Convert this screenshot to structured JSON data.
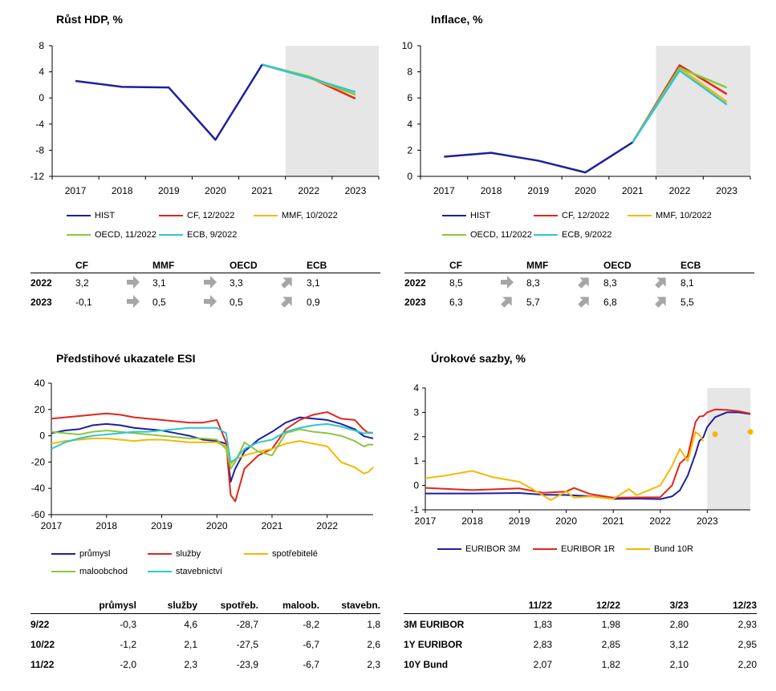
{
  "colors": {
    "hist": "#1f1f9e",
    "cf": "#e0261b",
    "mmf": "#f5b800",
    "oecd": "#8cc63f",
    "ecb": "#2ec7cf",
    "prumysl": "#1f1f9e",
    "sluzby": "#e0261b",
    "spotrebitele": "#f5b800",
    "maloobchod": "#8cc63f",
    "stavebnictvi": "#2ec7cf",
    "euribor3m": "#1f1f9e",
    "euribor1r": "#e0261b",
    "bund10r": "#f5b800",
    "shade": "#e6e6e6",
    "arrow": "#a6a6a6"
  },
  "gdp": {
    "title": "Růst HDP, %",
    "legend": [
      "HIST",
      "CF, 12/2022",
      "MMF, 10/2022",
      "OECD, 11/2022",
      "ECB, 9/2022"
    ],
    "table": {
      "headers": [
        "CF",
        "MMF",
        "OECD",
        "ECB"
      ],
      "rows": [
        {
          "label": "2022",
          "cf": "3,2",
          "mmf": "3,1",
          "oecd": "3,3",
          "ecb": "3,1",
          "arrows": [
            "right",
            "right",
            "up-right"
          ]
        },
        {
          "label": "2023",
          "cf": "-0,1",
          "mmf": "0,5",
          "oecd": "0,5",
          "ecb": "0,9",
          "arrows": [
            "right",
            "right",
            "up-right"
          ]
        }
      ]
    }
  },
  "inflation": {
    "title": "Inflace, %",
    "legend": [
      "HIST",
      "CF, 12/2022",
      "MMF, 10/2022",
      "OECD, 11/2022",
      "ECB, 9/2022"
    ],
    "table": {
      "headers": [
        "CF",
        "MMF",
        "OECD",
        "ECB"
      ],
      "rows": [
        {
          "label": "2022",
          "cf": "8,5",
          "mmf": "8,3",
          "oecd": "8,3",
          "ecb": "8,1",
          "arrows": [
            "right",
            "up-right",
            "up-right"
          ]
        },
        {
          "label": "2023",
          "cf": "6,3",
          "mmf": "5,7",
          "oecd": "6,8",
          "ecb": "5,5",
          "arrows": [
            "up-right",
            "up-right",
            "up-right"
          ]
        }
      ]
    }
  },
  "esi": {
    "title": "Předstihové ukazatele ESI",
    "legend": [
      "průmysl",
      "služby",
      "spotřebitelé",
      "maloobchod",
      "stavebnictví"
    ],
    "table": {
      "headers": [
        "průmysl",
        "služby",
        "spotřeb.",
        "maloob.",
        "stavebn."
      ],
      "rows": [
        {
          "label": "9/22",
          "values": [
            "-0,3",
            "4,6",
            "-28,7",
            "-8,2",
            "1,8"
          ]
        },
        {
          "label": "10/22",
          "values": [
            "-1,2",
            "2,1",
            "-27,5",
            "-6,7",
            "2,6"
          ]
        },
        {
          "label": "11/22",
          "values": [
            "-2,0",
            "2,3",
            "-23,9",
            "-6,7",
            "2,3"
          ]
        }
      ]
    }
  },
  "rates": {
    "title": "Úrokové sazby, %",
    "legend": [
      "EURIBOR 3M",
      "EURIBOR 1R",
      "Bund 10R"
    ],
    "table": {
      "headers": [
        "11/22",
        "12/22",
        "3/23",
        "12/23"
      ],
      "rows": [
        {
          "label": "3M EURIBOR",
          "values": [
            "1,83",
            "1,98",
            "2,80",
            "2,93"
          ]
        },
        {
          "label": "1Y EURIBOR",
          "values": [
            "2,83",
            "2,85",
            "3,12",
            "2,95"
          ]
        },
        {
          "label": "10Y Bund",
          "values": [
            "2,07",
            "1,82",
            "2,10",
            "2,20"
          ]
        }
      ]
    }
  },
  "chart_data": [
    {
      "type": "line",
      "title": "Růst HDP, %",
      "x": [
        "2017",
        "2018",
        "2019",
        "2020",
        "2021",
        "2022",
        "2023"
      ],
      "ylim": [
        -12,
        8
      ],
      "yticks": [
        "8",
        "4",
        "0",
        "-4",
        "-8",
        "-12"
      ],
      "forecast_shade_from": "2022",
      "series": [
        {
          "name": "HIST",
          "x": [
            "2017",
            "2018",
            "2019",
            "2020",
            "2021"
          ],
          "values": [
            2.6,
            1.7,
            1.6,
            -6.4,
            5.1
          ]
        },
        {
          "name": "CF, 12/2022",
          "x": [
            "2021",
            "2022",
            "2023"
          ],
          "values": [
            5.1,
            3.2,
            -0.1
          ]
        },
        {
          "name": "MMF, 10/2022",
          "x": [
            "2021",
            "2022",
            "2023"
          ],
          "values": [
            5.1,
            3.1,
            0.5
          ]
        },
        {
          "name": "OECD, 11/2022",
          "x": [
            "2021",
            "2022",
            "2023"
          ],
          "values": [
            5.1,
            3.3,
            0.5
          ]
        },
        {
          "name": "ECB, 9/2022",
          "x": [
            "2021",
            "2022",
            "2023"
          ],
          "values": [
            5.1,
            3.1,
            0.9
          ]
        }
      ]
    },
    {
      "type": "line",
      "title": "Inflace, %",
      "x": [
        "2017",
        "2018",
        "2019",
        "2020",
        "2021",
        "2022",
        "2023"
      ],
      "ylim": [
        0,
        10
      ],
      "yticks": [
        "10",
        "8",
        "6",
        "4",
        "2",
        "0"
      ],
      "forecast_shade_from": "2022",
      "series": [
        {
          "name": "HIST",
          "x": [
            "2017",
            "2018",
            "2019",
            "2020",
            "2021"
          ],
          "values": [
            1.5,
            1.8,
            1.2,
            0.3,
            2.6
          ]
        },
        {
          "name": "CF, 12/2022",
          "x": [
            "2021",
            "2022",
            "2023"
          ],
          "values": [
            2.6,
            8.5,
            6.3
          ]
        },
        {
          "name": "MMF, 10/2022",
          "x": [
            "2021",
            "2022",
            "2023"
          ],
          "values": [
            2.6,
            8.3,
            5.7
          ]
        },
        {
          "name": "OECD, 11/2022",
          "x": [
            "2021",
            "2022",
            "2023"
          ],
          "values": [
            2.6,
            8.3,
            6.8
          ]
        },
        {
          "name": "ECB, 9/2022",
          "x": [
            "2021",
            "2022",
            "2023"
          ],
          "values": [
            2.6,
            8.1,
            5.5
          ]
        }
      ]
    },
    {
      "type": "line",
      "title": "Předstihové ukazatele ESI",
      "x_start": "2017-01",
      "x_end": "2022-11",
      "xticks": [
        "2017",
        "2018",
        "2019",
        "2020",
        "2021",
        "2022"
      ],
      "ylim": [
        -60,
        40
      ],
      "yticks": [
        "40",
        "20",
        "0",
        "-20",
        "-40",
        "-60"
      ],
      "x": [
        "2017-01",
        "2017-04",
        "2017-07",
        "2017-10",
        "2018-01",
        "2018-04",
        "2018-07",
        "2018-10",
        "2019-01",
        "2019-04",
        "2019-07",
        "2019-10",
        "2020-01",
        "2020-03",
        "2020-04",
        "2020-05",
        "2020-07",
        "2020-10",
        "2021-01",
        "2021-04",
        "2021-07",
        "2021-10",
        "2022-01",
        "2022-04",
        "2022-07",
        "2022-09",
        "2022-10",
        "2022-11"
      ],
      "series": [
        {
          "name": "průmysl",
          "values": [
            2,
            4,
            5,
            8,
            9,
            8,
            6,
            5,
            4,
            2,
            0,
            -3,
            -4,
            -6,
            -35,
            -25,
            -12,
            -3,
            3,
            10,
            14,
            13,
            12,
            9,
            5,
            -0.3,
            -1.2,
            -2.0
          ]
        },
        {
          "name": "služby",
          "values": [
            13,
            14,
            15,
            16,
            17,
            16,
            14,
            13,
            12,
            11,
            10,
            10,
            12,
            -5,
            -45,
            -50,
            -25,
            -15,
            -10,
            5,
            12,
            16,
            18,
            13,
            12,
            4.6,
            2.1,
            2.3
          ]
        },
        {
          "name": "spotřebitelé",
          "values": [
            -6,
            -4,
            -3,
            -2,
            -2,
            -3,
            -4,
            -3,
            -3,
            -4,
            -5,
            -5,
            -5,
            -8,
            -22,
            -18,
            -15,
            -12,
            -10,
            -6,
            -4,
            -6,
            -8,
            -20,
            -24,
            -28.7,
            -27.5,
            -23.9
          ]
        },
        {
          "name": "maloobchod",
          "values": [
            3,
            2,
            1,
            3,
            4,
            3,
            2,
            1,
            0,
            -1,
            -2,
            -2,
            -3,
            -10,
            -25,
            -20,
            -5,
            -12,
            -15,
            2,
            5,
            3,
            2,
            0,
            -4,
            -8.2,
            -6.7,
            -6.7
          ]
        },
        {
          "name": "stavebnictví",
          "values": [
            -10,
            -5,
            -2,
            0,
            1,
            2,
            3,
            3,
            4,
            5,
            6,
            6,
            6,
            2,
            -20,
            -18,
            -10,
            -5,
            -3,
            3,
            6,
            8,
            9,
            7,
            4,
            1.8,
            2.6,
            2.3
          ]
        }
      ]
    },
    {
      "type": "line",
      "title": "Úrokové sazby, %",
      "x_start": "2017-01",
      "x_end": "2023-12",
      "xticks": [
        "2017",
        "2018",
        "2019",
        "2020",
        "2021",
        "2022",
        "2023"
      ],
      "ylim": [
        -1,
        4
      ],
      "yticks": [
        "4",
        "3",
        "2",
        "1",
        "0",
        "-1"
      ],
      "forecast_shade_from": "2023-01",
      "series": [
        {
          "name": "EURIBOR 3M",
          "x": [
            "2017-01",
            "2018-01",
            "2019-01",
            "2019-07",
            "2020-01",
            "2020-07",
            "2021-01",
            "2021-07",
            "2022-01",
            "2022-04",
            "2022-06",
            "2022-08",
            "2022-10",
            "2022-11",
            "2022-12",
            "2023-01",
            "2023-03",
            "2023-06",
            "2023-09",
            "2023-12"
          ],
          "values": [
            -0.33,
            -0.33,
            -0.31,
            -0.38,
            -0.39,
            -0.44,
            -0.55,
            -0.54,
            -0.56,
            -0.45,
            -0.2,
            0.4,
            1.3,
            1.83,
            1.98,
            2.4,
            2.8,
            3.0,
            3.0,
            2.93
          ]
        },
        {
          "name": "EURIBOR 1R",
          "x": [
            "2017-01",
            "2018-01",
            "2019-01",
            "2019-07",
            "2020-01",
            "2020-03",
            "2020-07",
            "2021-01",
            "2021-07",
            "2022-01",
            "2022-04",
            "2022-06",
            "2022-08",
            "2022-10",
            "2022-11",
            "2022-12",
            "2023-01",
            "2023-03",
            "2023-06",
            "2023-09",
            "2023-12"
          ],
          "values": [
            -0.1,
            -0.19,
            -0.12,
            -0.3,
            -0.25,
            -0.1,
            -0.35,
            -0.5,
            -0.49,
            -0.48,
            0.0,
            0.9,
            1.2,
            2.6,
            2.83,
            2.85,
            3.0,
            3.12,
            3.1,
            3.05,
            2.95
          ]
        },
        {
          "name": "Bund 10R",
          "x": [
            "2017-01",
            "2017-06",
            "2018-01",
            "2018-06",
            "2019-01",
            "2019-06",
            "2019-09",
            "2020-01",
            "2020-03",
            "2020-07",
            "2021-01",
            "2021-05",
            "2021-07",
            "2022-01",
            "2022-04",
            "2022-06",
            "2022-08",
            "2022-10",
            "2022-11",
            "2022-12"
          ],
          "values": [
            0.3,
            0.4,
            0.6,
            0.35,
            0.15,
            -0.3,
            -0.6,
            -0.25,
            -0.5,
            -0.45,
            -0.55,
            -0.15,
            -0.4,
            0.0,
            0.8,
            1.5,
            1.0,
            2.2,
            2.07,
            1.82
          ]
        },
        {
          "name": "Bund 10R forecast",
          "x": [
            "2023-03",
            "2023-12"
          ],
          "values": [
            2.1,
            2.2
          ],
          "style": "points"
        }
      ]
    }
  ]
}
